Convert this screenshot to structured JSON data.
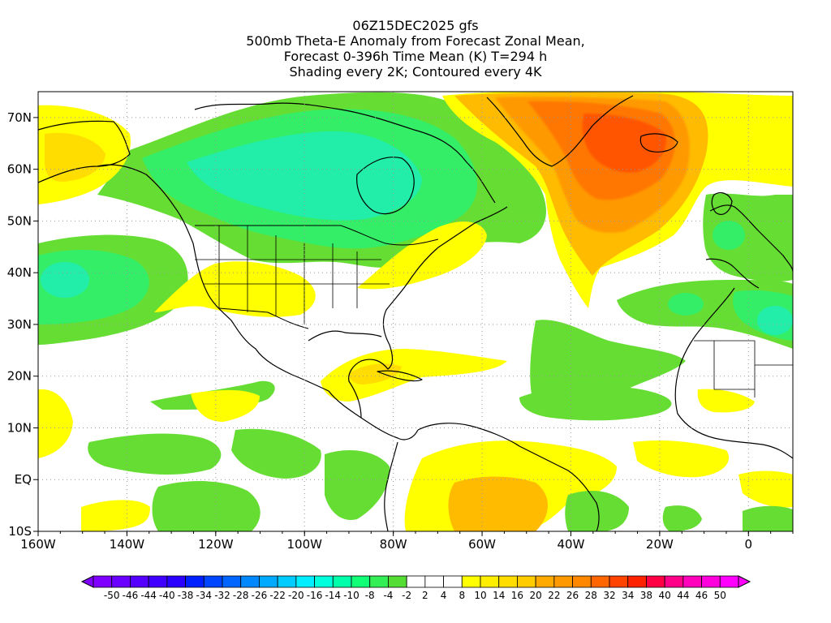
{
  "title_lines": [
    "06Z15DEC2025 gfs",
    "500mb Theta-E Anomaly from Forecast Zonal Mean,",
    "Forecast 0-396h Time Mean (K) T=294 h",
    "Shading every 2K; Contoured every 4K"
  ],
  "map": {
    "lon_range": [
      -160,
      10
    ],
    "lat_range": [
      -10,
      75
    ],
    "lon_ticks": [
      {
        "value": -160,
        "label": "160W"
      },
      {
        "value": -140,
        "label": "140W"
      },
      {
        "value": -120,
        "label": "120W"
      },
      {
        "value": -100,
        "label": "100W"
      },
      {
        "value": -80,
        "label": "80W"
      },
      {
        "value": -60,
        "label": "60W"
      },
      {
        "value": -40,
        "label": "40W"
      },
      {
        "value": -20,
        "label": "20W"
      },
      {
        "value": 0,
        "label": "0"
      }
    ],
    "lat_ticks": [
      {
        "value": -10,
        "label": "10S"
      },
      {
        "value": 0,
        "label": "EQ"
      },
      {
        "value": 10,
        "label": "10N"
      },
      {
        "value": 20,
        "label": "20N"
      },
      {
        "value": 30,
        "label": "30N"
      },
      {
        "value": 40,
        "label": "40N"
      },
      {
        "value": 50,
        "label": "50N"
      },
      {
        "value": 60,
        "label": "60N"
      },
      {
        "value": 70,
        "label": "70N"
      }
    ],
    "grid": true,
    "colors": {
      "green_bright": "#66dd33",
      "green": "#33ee66",
      "green_teal": "#22eeaa",
      "yellow": "#ffff00",
      "yellow_orange": "#ffdd00",
      "orange_light": "#ffbb00",
      "orange": "#ff9900",
      "orange_deep": "#ff7700",
      "red_orange": "#ff5500",
      "coast": "#000000"
    }
  },
  "colorbar": {
    "labels": [
      "-50",
      "-46",
      "-44",
      "-40",
      "-38",
      "-34",
      "-32",
      "-28",
      "-26",
      "-22",
      "-20",
      "-16",
      "-14",
      "-10",
      "-8",
      "-4",
      "-2",
      "2",
      "4",
      "8",
      "10",
      "14",
      "16",
      "20",
      "22",
      "26",
      "28",
      "32",
      "34",
      "38",
      "40",
      "44",
      "46",
      "50"
    ],
    "colors": [
      "#7f00ff",
      "#6a00ff",
      "#5500ff",
      "#3f00ff",
      "#2a00ff",
      "#0020ff",
      "#0045ff",
      "#0066ff",
      "#0088ff",
      "#00aaff",
      "#00ccff",
      "#00eeff",
      "#00ffdd",
      "#00ffaa",
      "#11ff77",
      "#33ee55",
      "#55dd33",
      "#ffffff",
      "#ffffff",
      "#ffffff",
      "#ffff00",
      "#ffee00",
      "#ffdd00",
      "#ffcc00",
      "#ffaa00",
      "#ff9900",
      "#ff8800",
      "#ff6600",
      "#ff4400",
      "#ff2200",
      "#ff0044",
      "#ff0088",
      "#ff00bb",
      "#ff00dd",
      "#ff00ff"
    ]
  }
}
